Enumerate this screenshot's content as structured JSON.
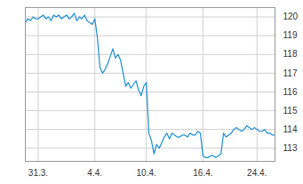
{
  "chart_data": {
    "type": "line",
    "categories": [
      null,
      null,
      null,
      null,
      null,
      "31.3.",
      null,
      null,
      null,
      null,
      null,
      null,
      null,
      null,
      null,
      null,
      null,
      null,
      null,
      null,
      null,
      null,
      null,
      null,
      null,
      null,
      null,
      "4.4.",
      null,
      null,
      null,
      null,
      null,
      null,
      null,
      null,
      null,
      null,
      null,
      null,
      null,
      null,
      null,
      null,
      null,
      null,
      null,
      "10.4.",
      null,
      null,
      null,
      null,
      null,
      null,
      null,
      null,
      null,
      null,
      null,
      null,
      null,
      null,
      null,
      null,
      null,
      null,
      null,
      null,
      null,
      "16.4.",
      null,
      null,
      null,
      null,
      null,
      null,
      null,
      null,
      null,
      null,
      null,
      null,
      null,
      null,
      null,
      null,
      null,
      null,
      null,
      null,
      "24.4.",
      null,
      null,
      null,
      null,
      null,
      null,
      null
    ],
    "values": [
      119.7,
      119.9,
      119.8,
      120.0,
      119.9,
      119.9,
      120.0,
      120.1,
      119.9,
      120.0,
      119.8,
      120.1,
      120.0,
      120.1,
      119.9,
      120.0,
      120.1,
      119.9,
      120.0,
      120.2,
      119.8,
      120.0,
      119.9,
      120.1,
      119.8,
      119.7,
      119.6,
      119.9,
      118.9,
      117.3,
      117.0,
      117.2,
      117.5,
      117.9,
      118.3,
      117.8,
      118.0,
      117.7,
      117.0,
      116.3,
      116.5,
      116.2,
      116.4,
      116.6,
      116.1,
      115.8,
      116.3,
      116.5,
      113.8,
      113.4,
      112.7,
      113.2,
      113.0,
      113.3,
      113.6,
      113.8,
      113.5,
      113.8,
      113.7,
      113.6,
      113.6,
      113.7,
      113.7,
      113.6,
      113.8,
      113.7,
      113.7,
      113.9,
      113.8,
      112.6,
      112.5,
      112.5,
      112.6,
      112.6,
      112.5,
      112.6,
      112.7,
      113.8,
      113.6,
      113.7,
      113.8,
      114.0,
      114.1,
      114.0,
      113.9,
      114.0,
      114.2,
      114.1,
      114.0,
      114.1,
      114.0,
      113.9,
      113.9,
      114.0,
      113.8,
      113.8,
      113.7,
      113.7
    ],
    "color": "#1b8fd6",
    "ylim": [
      112.3,
      120.5
    ],
    "yticks": [
      113,
      114,
      115,
      116,
      117,
      118,
      119,
      120
    ],
    "grid": true
  }
}
